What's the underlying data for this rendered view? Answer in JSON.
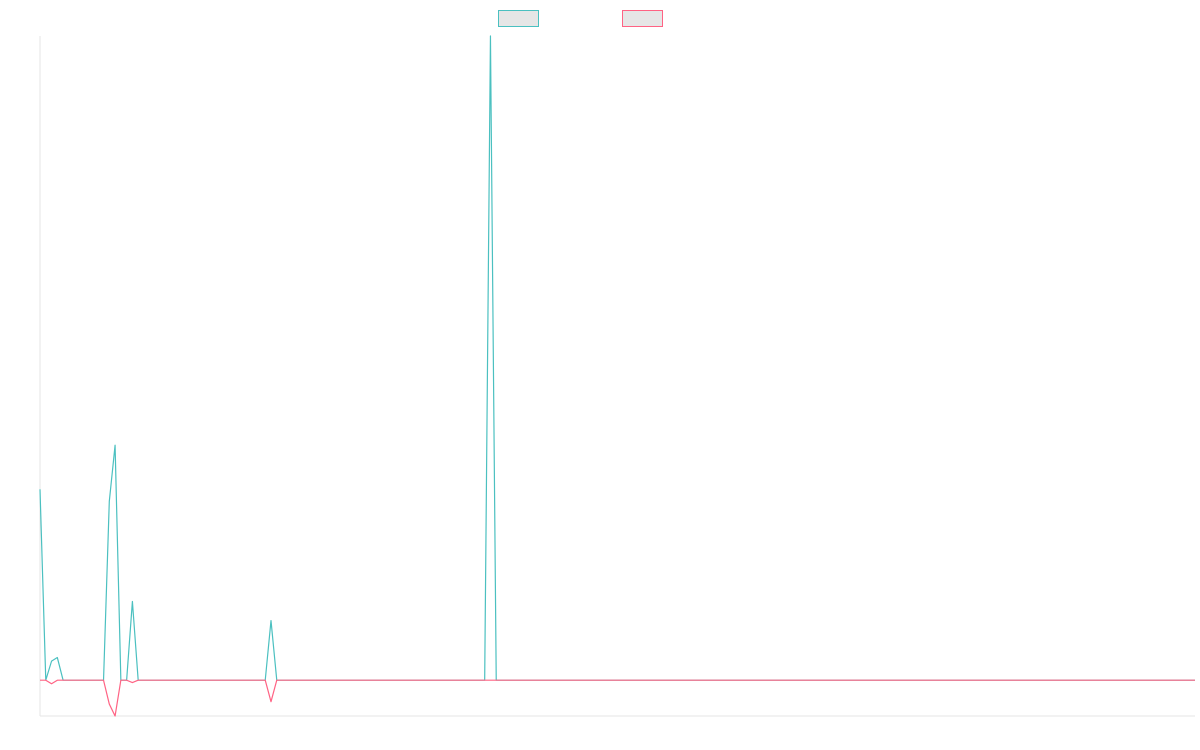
{
  "chart_data": {
    "type": "line",
    "legend_position": "top-center",
    "grid": false,
    "x_range": [
      0,
      200
    ],
    "y_range": [
      -3,
      54
    ],
    "series": [
      {
        "color": "#4bc0c0",
        "points": [
          [
            0,
            16
          ],
          [
            1,
            0
          ],
          [
            2,
            1.6
          ],
          [
            3,
            1.9
          ],
          [
            4,
            0
          ],
          [
            5,
            0
          ],
          [
            6,
            0
          ],
          [
            7,
            0
          ],
          [
            8,
            0
          ],
          [
            9,
            0
          ],
          [
            10,
            0
          ],
          [
            11,
            0
          ],
          [
            12,
            15
          ],
          [
            13,
            19.7
          ],
          [
            14,
            0
          ],
          [
            15,
            0
          ],
          [
            16,
            6.6
          ],
          [
            17,
            0
          ],
          [
            18,
            0
          ],
          [
            19,
            0
          ],
          [
            20,
            0
          ],
          [
            21,
            0
          ],
          [
            22,
            0
          ],
          [
            23,
            0
          ],
          [
            24,
            0
          ],
          [
            25,
            0
          ],
          [
            26,
            0
          ],
          [
            27,
            0
          ],
          [
            28,
            0
          ],
          [
            29,
            0
          ],
          [
            30,
            0
          ],
          [
            31,
            0
          ],
          [
            32,
            0
          ],
          [
            33,
            0
          ],
          [
            34,
            0
          ],
          [
            35,
            0
          ],
          [
            36,
            0
          ],
          [
            37,
            0
          ],
          [
            38,
            0
          ],
          [
            39,
            0
          ],
          [
            40,
            5
          ],
          [
            41,
            0
          ],
          [
            42,
            0
          ],
          [
            43,
            0
          ],
          [
            44,
            0
          ],
          [
            45,
            0
          ],
          [
            46,
            0
          ],
          [
            47,
            0
          ],
          [
            48,
            0
          ],
          [
            49,
            0
          ],
          [
            50,
            0
          ],
          [
            51,
            0
          ],
          [
            52,
            0
          ],
          [
            53,
            0
          ],
          [
            54,
            0
          ],
          [
            55,
            0
          ],
          [
            56,
            0
          ],
          [
            57,
            0
          ],
          [
            58,
            0
          ],
          [
            59,
            0
          ],
          [
            60,
            0
          ],
          [
            61,
            0
          ],
          [
            62,
            0
          ],
          [
            63,
            0
          ],
          [
            64,
            0
          ],
          [
            65,
            0
          ],
          [
            66,
            0
          ],
          [
            67,
            0
          ],
          [
            68,
            0
          ],
          [
            69,
            0
          ],
          [
            70,
            0
          ],
          [
            71,
            0
          ],
          [
            72,
            0
          ],
          [
            73,
            0
          ],
          [
            74,
            0
          ],
          [
            75,
            0
          ],
          [
            76,
            0
          ],
          [
            77,
            0
          ],
          [
            78,
            54
          ],
          [
            79,
            0
          ],
          [
            80,
            0
          ],
          [
            200,
            0
          ]
        ]
      },
      {
        "color": "#ff6384",
        "points": [
          [
            0,
            0
          ],
          [
            1,
            0
          ],
          [
            2,
            -0.3
          ],
          [
            3,
            0
          ],
          [
            4,
            0
          ],
          [
            5,
            0
          ],
          [
            6,
            0
          ],
          [
            7,
            0
          ],
          [
            8,
            0
          ],
          [
            9,
            0
          ],
          [
            10,
            0
          ],
          [
            11,
            0
          ],
          [
            12,
            -2
          ],
          [
            13,
            -3
          ],
          [
            14,
            0
          ],
          [
            15,
            0
          ],
          [
            16,
            -0.2
          ],
          [
            17,
            0
          ],
          [
            18,
            0
          ],
          [
            19,
            0
          ],
          [
            20,
            0
          ],
          [
            21,
            0
          ],
          [
            22,
            0
          ],
          [
            23,
            0
          ],
          [
            24,
            0
          ],
          [
            25,
            0
          ],
          [
            26,
            0
          ],
          [
            27,
            0
          ],
          [
            28,
            0
          ],
          [
            29,
            0
          ],
          [
            30,
            0
          ],
          [
            31,
            0
          ],
          [
            32,
            0
          ],
          [
            33,
            0
          ],
          [
            34,
            0
          ],
          [
            35,
            0
          ],
          [
            36,
            0
          ],
          [
            37,
            0
          ],
          [
            38,
            0
          ],
          [
            39,
            0
          ],
          [
            40,
            -1.8
          ],
          [
            41,
            0
          ],
          [
            42,
            0
          ],
          [
            80,
            0
          ],
          [
            200,
            0
          ]
        ]
      }
    ]
  }
}
